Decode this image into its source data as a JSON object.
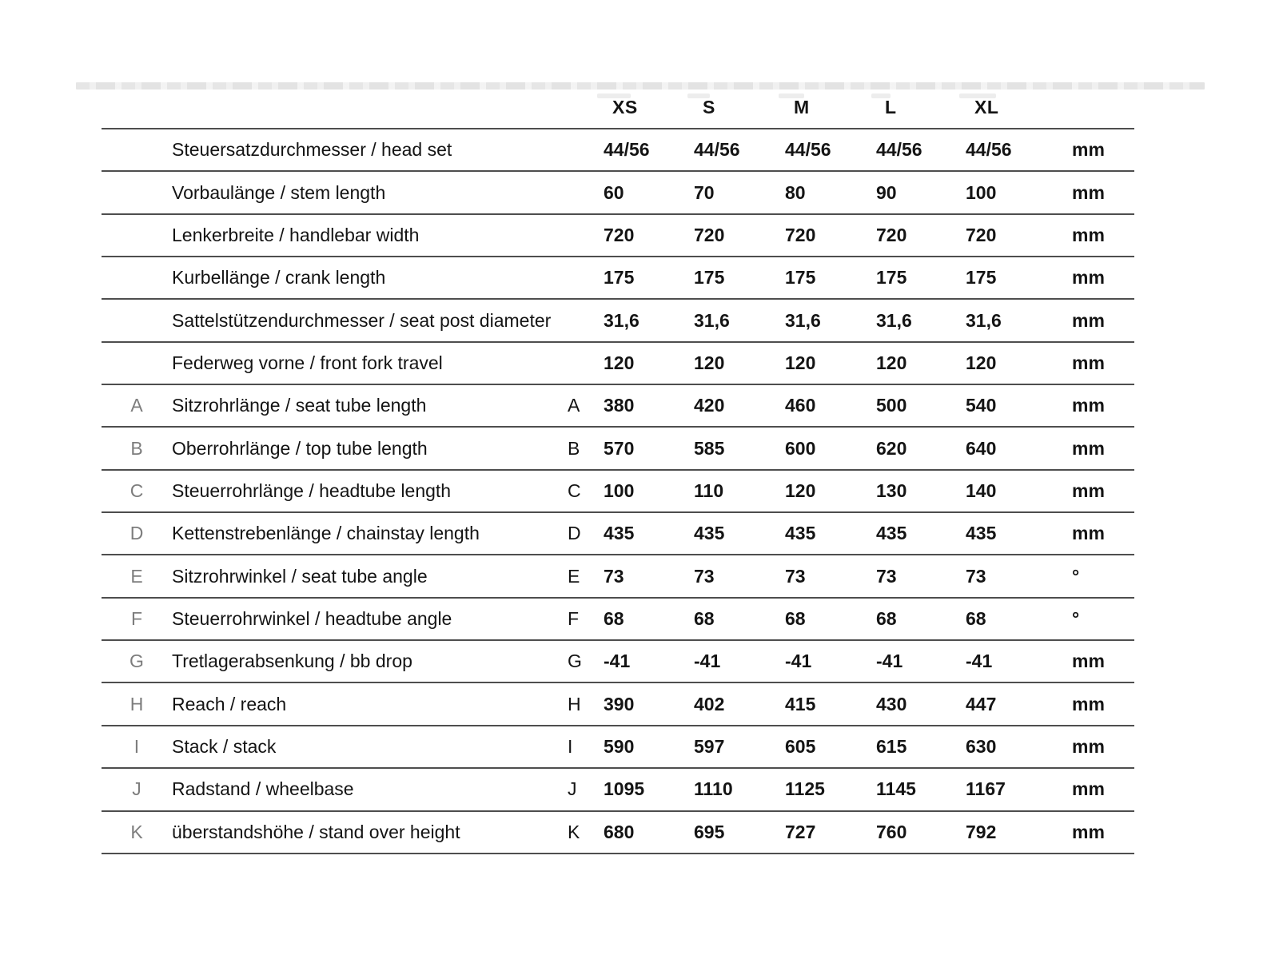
{
  "colors": {
    "rule": "#4e4e4e",
    "text": "#141414",
    "muted_letter": "#7d7d7d",
    "artifact_band": "#e4e4e4"
  },
  "table": {
    "size_headers": [
      "XS",
      "S",
      "M",
      "L",
      "XL"
    ],
    "rows": [
      {
        "letter": "",
        "label": "Steuersatzdurchmesser / head set",
        "values": [
          "44/56",
          "44/56",
          "44/56",
          "44/56",
          "44/56"
        ],
        "unit": "mm"
      },
      {
        "letter": "",
        "label": "Vorbaulänge / stem length",
        "values": [
          "60",
          "70",
          "80",
          "90",
          "100"
        ],
        "unit": "mm"
      },
      {
        "letter": "",
        "label": "Lenkerbreite / handlebar width",
        "values": [
          "720",
          "720",
          "720",
          "720",
          "720"
        ],
        "unit": "mm"
      },
      {
        "letter": "",
        "label": "Kurbellänge / crank length",
        "values": [
          "175",
          "175",
          "175",
          "175",
          "175"
        ],
        "unit": "mm"
      },
      {
        "letter": "",
        "label": "Sattelstützendurchmesser / seat post diameter",
        "values": [
          "31,6",
          "31,6",
          "31,6",
          "31,6",
          "31,6"
        ],
        "unit": "mm"
      },
      {
        "letter": "",
        "label": "Federweg vorne / front fork travel",
        "values": [
          "120",
          "120",
          "120",
          "120",
          "120"
        ],
        "unit": "mm"
      },
      {
        "letter": "A",
        "label": "Sitzrohrlänge / seat tube length",
        "values": [
          "380",
          "420",
          "460",
          "500",
          "540"
        ],
        "unit": "mm"
      },
      {
        "letter": "B",
        "label": "Oberrohrlänge / top tube length",
        "values": [
          "570",
          "585",
          "600",
          "620",
          "640"
        ],
        "unit": "mm"
      },
      {
        "letter": "C",
        "label": "Steuerrohrlänge / headtube length",
        "values": [
          "100",
          "110",
          "120",
          "130",
          "140"
        ],
        "unit": "mm"
      },
      {
        "letter": "D",
        "label": "Kettenstrebenlänge / chainstay length",
        "values": [
          "435",
          "435",
          "435",
          "435",
          "435"
        ],
        "unit": "mm"
      },
      {
        "letter": "E",
        "label": "Sitzrohrwinkel / seat tube angle",
        "values": [
          "73",
          "73",
          "73",
          "73",
          "73"
        ],
        "unit": "°"
      },
      {
        "letter": "F",
        "label": "Steuerrohrwinkel / headtube angle",
        "values": [
          "68",
          "68",
          "68",
          "68",
          "68"
        ],
        "unit": "°"
      },
      {
        "letter": "G",
        "label": "Tretlagerabsenkung / bb drop",
        "values": [
          "-41",
          "-41",
          "-41",
          "-41",
          "-41"
        ],
        "unit": "mm"
      },
      {
        "letter": "H",
        "label": "Reach / reach",
        "values": [
          "390",
          "402",
          "415",
          "430",
          "447"
        ],
        "unit": "mm"
      },
      {
        "letter": "I",
        "label": "Stack / stack",
        "values": [
          "590",
          "597",
          "605",
          "615",
          "630"
        ],
        "unit": "mm"
      },
      {
        "letter": "J",
        "label": "Radstand / wheelbase",
        "values": [
          "1095",
          "1110",
          "1125",
          "1145",
          "1167"
        ],
        "unit": "mm"
      },
      {
        "letter": "K",
        "label": "überstandshöhe / stand over height",
        "values": [
          "680",
          "695",
          "727",
          "760",
          "792"
        ],
        "unit": "mm"
      }
    ]
  }
}
